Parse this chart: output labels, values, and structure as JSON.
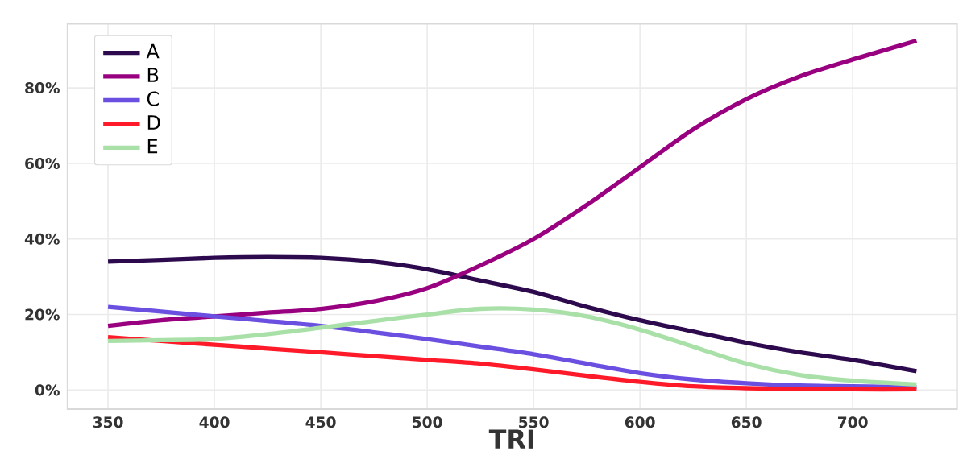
{
  "chart_data": {
    "type": "line",
    "xlabel": "TRI",
    "x": [
      350,
      375,
      400,
      425,
      450,
      475,
      500,
      525,
      550,
      575,
      600,
      625,
      650,
      675,
      700,
      730
    ],
    "series": [
      {
        "name": "A",
        "color": "#2d0a4e",
        "values": [
          34,
          34.5,
          35,
          35.2,
          35,
          34,
          32,
          29,
          26,
          22,
          18.5,
          15.5,
          12.5,
          10,
          8,
          5
        ]
      },
      {
        "name": "B",
        "color": "#990080",
        "values": [
          17,
          18.5,
          19.5,
          20.5,
          21.5,
          23.5,
          27,
          33,
          40,
          49,
          59,
          69,
          77,
          83,
          87.5,
          92.5
        ]
      },
      {
        "name": "C",
        "color": "#6a4fe0",
        "values": [
          22,
          20.8,
          19.5,
          18.3,
          17,
          15.3,
          13.5,
          11.5,
          9.5,
          7,
          4.5,
          2.8,
          1.8,
          1.2,
          1,
          0.8
        ]
      },
      {
        "name": "D",
        "color": "#ff1a2a",
        "values": [
          14,
          13,
          12,
          11,
          10,
          9,
          8,
          7,
          5.5,
          3.8,
          2.2,
          1,
          0.5,
          0.3,
          0.2,
          0.2
        ]
      },
      {
        "name": "E",
        "color": "#a8e0a8",
        "values": [
          13,
          13.2,
          13.5,
          14.8,
          16.5,
          18.3,
          20,
          21.5,
          21.3,
          19.5,
          16,
          11.5,
          7,
          4,
          2.5,
          1.5
        ]
      }
    ],
    "xlim": [
      331,
      749
    ],
    "ylim": [
      -5,
      97
    ],
    "xticks": [
      350,
      400,
      450,
      500,
      550,
      600,
      650,
      700
    ],
    "yticks": [
      {
        "value": 0,
        "label": "0%"
      },
      {
        "value": 20,
        "label": "20%"
      },
      {
        "value": 40,
        "label": "40%"
      },
      {
        "value": 60,
        "label": "60%"
      },
      {
        "value": 80,
        "label": "80%"
      }
    ],
    "grid": true,
    "legend": "top left",
    "marker": "none",
    "line_style": "solid"
  }
}
